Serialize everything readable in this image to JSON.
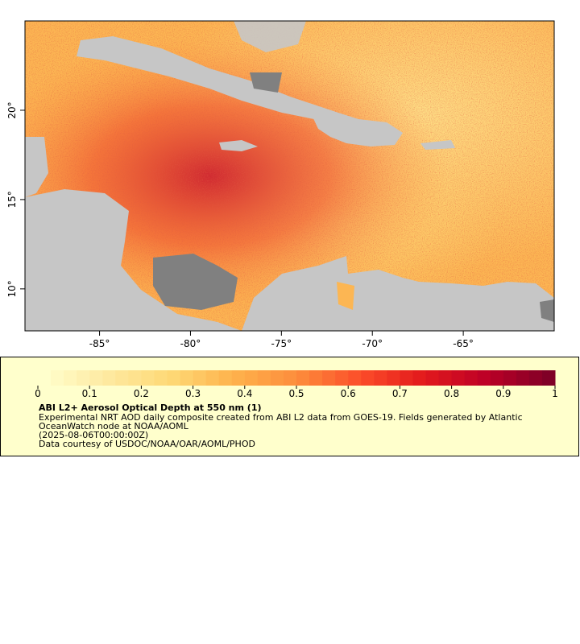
{
  "map": {
    "xlim": [
      -89.1,
      -60
    ],
    "ylim": [
      7.65,
      25
    ],
    "xticks": [
      {
        "value": -85,
        "label": "-85°"
      },
      {
        "value": -80,
        "label": "-80°"
      },
      {
        "value": -75,
        "label": "-75°"
      },
      {
        "value": -70,
        "label": "-70°"
      },
      {
        "value": -65,
        "label": "-65°"
      }
    ],
    "yticks": [
      {
        "value": 10,
        "label": "10°"
      },
      {
        "value": 15,
        "label": "15°"
      },
      {
        "value": 20,
        "label": "20°"
      }
    ]
  },
  "colorbar": {
    "range": [
      0,
      1
    ],
    "ticks": [
      0,
      0.1,
      0.2,
      0.3,
      0.4,
      0.5,
      0.6,
      0.7,
      0.8,
      0.9,
      1
    ],
    "colors": [
      "#ffffcc",
      "#fee9a0",
      "#fed976",
      "#feb24c",
      "#fd8d3c",
      "#fc4e2a",
      "#e31a1c",
      "#bd0026",
      "#800026"
    ],
    "segments": 40
  },
  "legend": {
    "title": "ABI L2+ Aerosol Optical Depth at 550 nm (1)",
    "lines": [
      "Experimental NRT AOD daily composite created from ABI L2 data from GOES-19. Fields generated by Atlantic",
      "OceanWatch node at NOAA/AOML",
      "(2025-08-06T00:00:00Z)",
      "Data courtesy of USDOC/NOAA/OAR/AOML/PHOD"
    ]
  }
}
